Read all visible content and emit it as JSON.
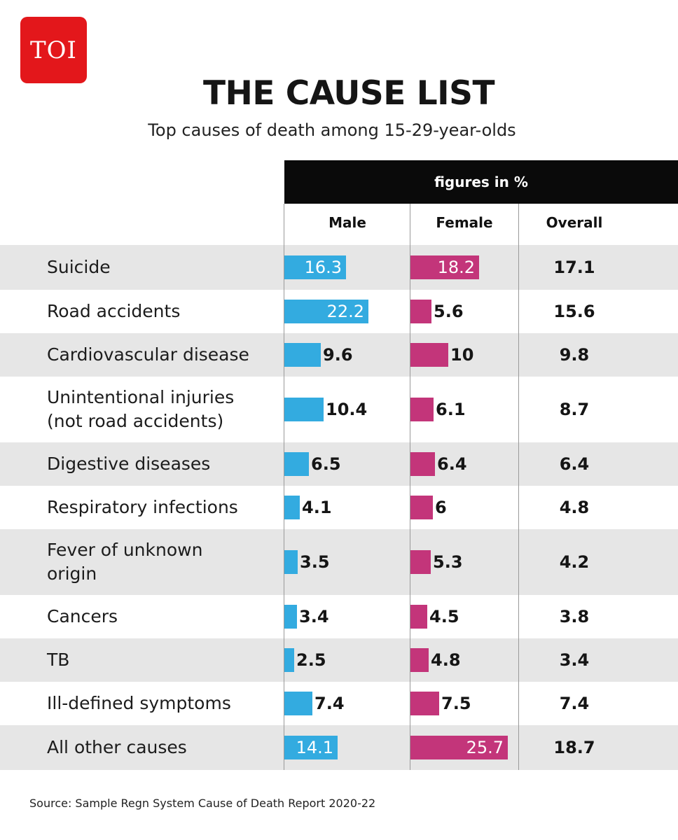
{
  "brand": {
    "logo_text": "TOI",
    "logo_color": "#e3171b"
  },
  "colors": {
    "male": "#33abe0",
    "female": "#c3357a"
  },
  "chart_data": {
    "type": "bar",
    "title": "THE CAUSE LIST",
    "subtitle": "Top causes of death among 15-29-year-olds",
    "units_note": "figures in %",
    "columns": [
      "Male",
      "Female",
      "Overall"
    ],
    "categories": [
      "Suicide",
      "Road accidents",
      "Cardiovascular disease",
      "Unintentional injuries (not road accidents)",
      "Digestive diseases",
      "Respiratory infections",
      "Fever of unknown origin",
      "Cancers",
      "TB",
      "Ill-defined symptoms",
      "All other causes"
    ],
    "series": [
      {
        "name": "Male",
        "values": [
          16.3,
          22.2,
          9.6,
          10.4,
          6.5,
          4.1,
          3.5,
          3.4,
          2.5,
          7.4,
          14.1
        ]
      },
      {
        "name": "Female",
        "values": [
          18.2,
          5.6,
          10,
          6.1,
          6.4,
          6,
          5.3,
          4.5,
          4.8,
          7.5,
          25.7
        ]
      },
      {
        "name": "Overall",
        "values": [
          17.1,
          15.6,
          9.8,
          8.7,
          6.4,
          4.8,
          4.2,
          3.8,
          3.4,
          7.4,
          18.7
        ]
      }
    ],
    "value_labels": {
      "Male": [
        "16.3",
        "22.2",
        "9.6",
        "10.4",
        "6.5",
        "4.1",
        "3.5",
        "3.4",
        "2.5",
        "7.4",
        "14.1"
      ],
      "Female": [
        "18.2",
        "5.6",
        "10",
        "6.1",
        "6.4",
        "6",
        "5.3",
        "4.5",
        "4.8",
        "7.5",
        "25.7"
      ],
      "Overall": [
        "17.1",
        "15.6",
        "9.8",
        "8.7",
        "6.4",
        "4.8",
        "4.2",
        "3.8",
        "3.4",
        "7.4",
        "18.7"
      ]
    },
    "source": "Source: Sample Regn System Cause of Death Report 2020-22"
  }
}
